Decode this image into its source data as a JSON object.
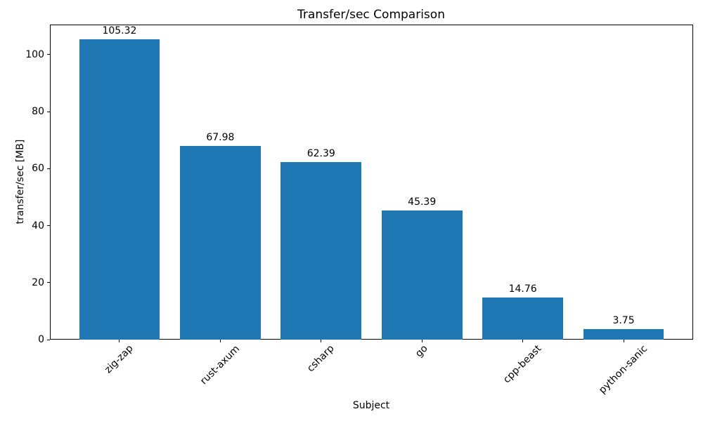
{
  "chart_data": {
    "type": "bar",
    "title": "Transfer/sec Comparison",
    "xlabel": "Subject",
    "ylabel": "transfer/sec [MB]",
    "categories": [
      "zig-zap",
      "rust-axum",
      "csharp",
      "go",
      "cpp-beast",
      "python-sanic"
    ],
    "values": [
      105.32,
      67.98,
      62.39,
      45.39,
      14.76,
      3.75
    ],
    "bar_labels": [
      "105.32",
      "67.98",
      "62.39",
      "45.39",
      "14.76",
      "3.75"
    ],
    "bar_color": "#1f77b4",
    "text_color": "#000000",
    "spine_color": "#000000",
    "background": "#ffffff",
    "yticks": [
      0,
      20,
      40,
      60,
      80,
      100
    ],
    "ylim": [
      0,
      110.59
    ],
    "x_tick_rotation_deg": 45,
    "grid": false,
    "legend": "none"
  }
}
